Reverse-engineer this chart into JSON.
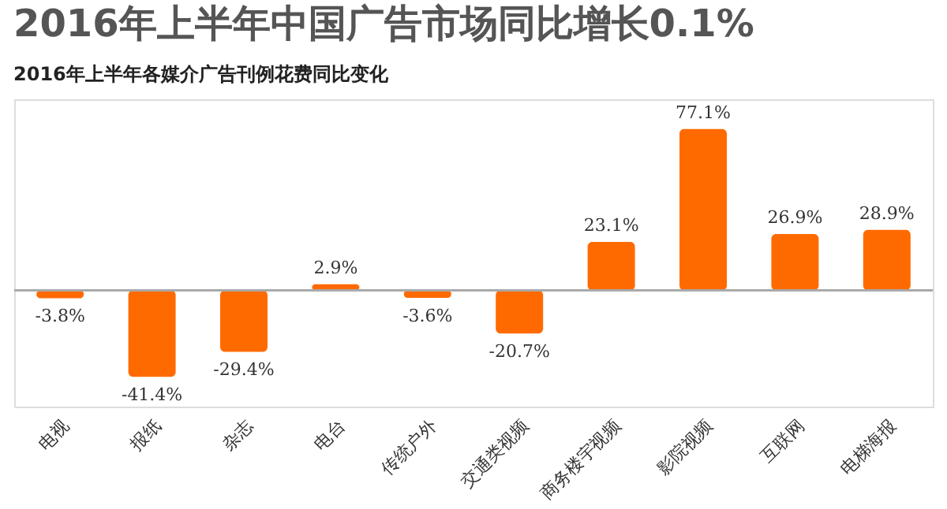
{
  "chart_data": {
    "type": "bar",
    "title": "2016年上半年中国广告市场同比增长0.1%",
    "subtitle": "2016年上半年各媒介广告刊例花费同比变化",
    "categories": [
      "电视",
      "报纸",
      "杂志",
      "电台",
      "传统户外",
      "交通类视频",
      "商务楼宇视频",
      "影院视频",
      "互联网",
      "电梯海报"
    ],
    "values": [
      -3.8,
      -41.4,
      -29.4,
      2.9,
      -3.6,
      -20.7,
      23.1,
      77.1,
      26.9,
      28.9
    ],
    "value_labels": [
      "-3.8%",
      "-41.4%",
      "-29.4%",
      "2.9%",
      "-3.6%",
      "-20.7%",
      "23.1%",
      "77.1%",
      "26.9%",
      "28.9%"
    ],
    "color": "#ff6a00"
  }
}
